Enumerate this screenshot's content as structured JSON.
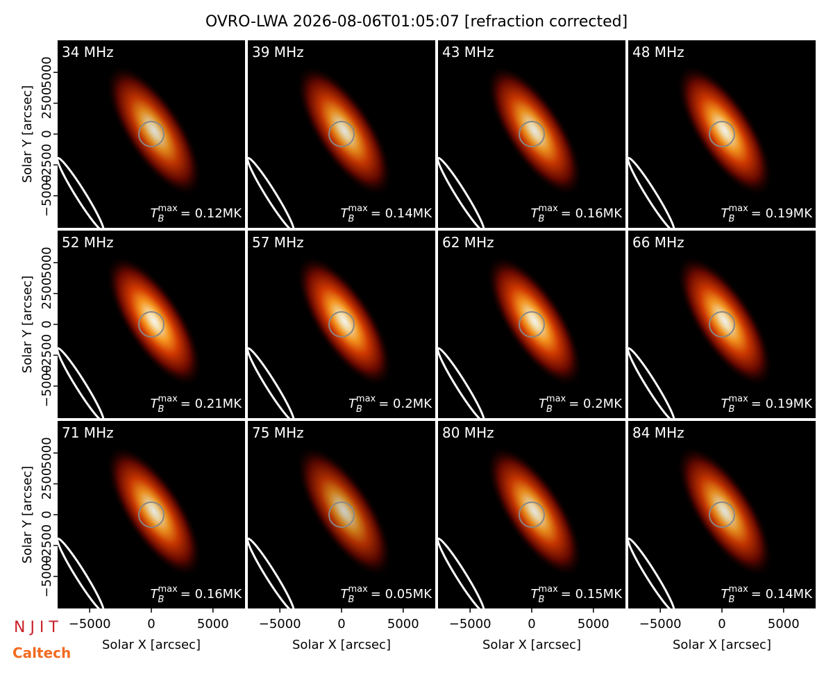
{
  "chart_data": {
    "type": "image_grid",
    "title": "OVRO-LWA 2026-08-06T01:05:07 [refraction corrected]",
    "xlabel": "Solar X [arcsec]",
    "ylabel": "Solar Y [arcsec]",
    "xlim": [
      -7600,
      7600
    ],
    "ylim": [
      -7600,
      7600
    ],
    "xticks": [
      {
        "value": -5000,
        "label": "−5000"
      },
      0,
      5000
    ],
    "yticks": [
      {
        "value": -5000,
        "label": "−5000"
      },
      {
        "value": -2500,
        "label": "−2500"
      },
      0,
      2500,
      5000
    ],
    "tb_symbol": "T",
    "tb_sub": "B",
    "tb_sup": "max",
    "panels": [
      {
        "title": "34 MHz",
        "values": [
          0.12
        ],
        "value_labels": [
          "= 0.12MK"
        ]
      },
      {
        "title": "39 MHz",
        "values": [
          0.14
        ],
        "value_labels": [
          "= 0.14MK"
        ]
      },
      {
        "title": "43 MHz",
        "values": [
          0.16
        ],
        "value_labels": [
          "= 0.16MK"
        ]
      },
      {
        "title": "48 MHz",
        "values": [
          0.19
        ],
        "value_labels": [
          "= 0.19MK"
        ]
      },
      {
        "title": "52 MHz",
        "values": [
          0.21
        ],
        "value_labels": [
          "= 0.21MK"
        ]
      },
      {
        "title": "57 MHz",
        "values": [
          0.2
        ],
        "value_labels": [
          "= 0.2MK"
        ]
      },
      {
        "title": "62 MHz",
        "values": [
          0.2
        ],
        "value_labels": [
          "= 0.2MK"
        ]
      },
      {
        "title": "66 MHz",
        "values": [
          0.19
        ],
        "value_labels": [
          "= 0.19MK"
        ]
      },
      {
        "title": "71 MHz",
        "values": [
          0.16
        ],
        "value_labels": [
          "= 0.16MK"
        ]
      },
      {
        "title": "75 MHz",
        "values": [
          0.05
        ],
        "value_labels": [
          "= 0.05MK"
        ]
      },
      {
        "title": "80 MHz",
        "values": [
          0.15
        ],
        "value_labels": [
          "= 0.15MK"
        ]
      },
      {
        "title": "84 MHz",
        "values": [
          0.14
        ],
        "value_labels": [
          "= 0.14MK"
        ]
      }
    ]
  },
  "logos": [
    "N J I T",
    "Caltech"
  ]
}
